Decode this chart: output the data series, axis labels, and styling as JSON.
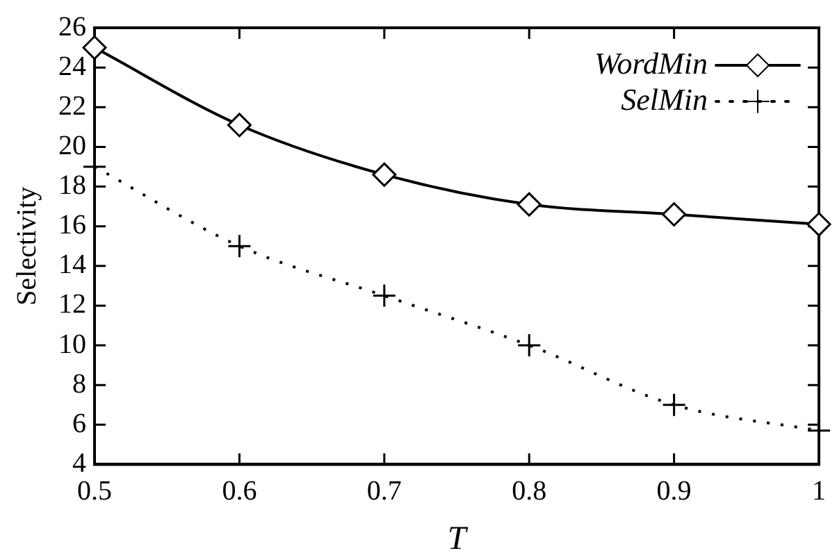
{
  "chart_data": {
    "type": "line",
    "xlabel": "T",
    "ylabel": "Selectivity",
    "x": [
      0.5,
      0.6,
      0.7,
      0.8,
      0.9,
      1
    ],
    "series": [
      {
        "name": "WordMin",
        "color": "#000000",
        "values": [
          25,
          21.1,
          18.6,
          17.1,
          16.6,
          16.1
        ],
        "marker": "diamond",
        "line_style": "solid"
      },
      {
        "name": "SelMin",
        "color": "#000000",
        "values": [
          19,
          15,
          12.5,
          10,
          7,
          5.7
        ],
        "marker": "cross",
        "line_style": "dotted"
      }
    ],
    "xlim": [
      0.5,
      1
    ],
    "xticks": [
      0.5,
      0.6,
      0.7,
      0.8,
      0.9,
      1
    ],
    "ylim": [
      4,
      26
    ],
    "yticks": [
      4,
      6,
      8,
      10,
      12,
      14,
      16,
      18,
      20,
      22,
      24,
      26
    ],
    "grid": false,
    "legend": "top right"
  }
}
